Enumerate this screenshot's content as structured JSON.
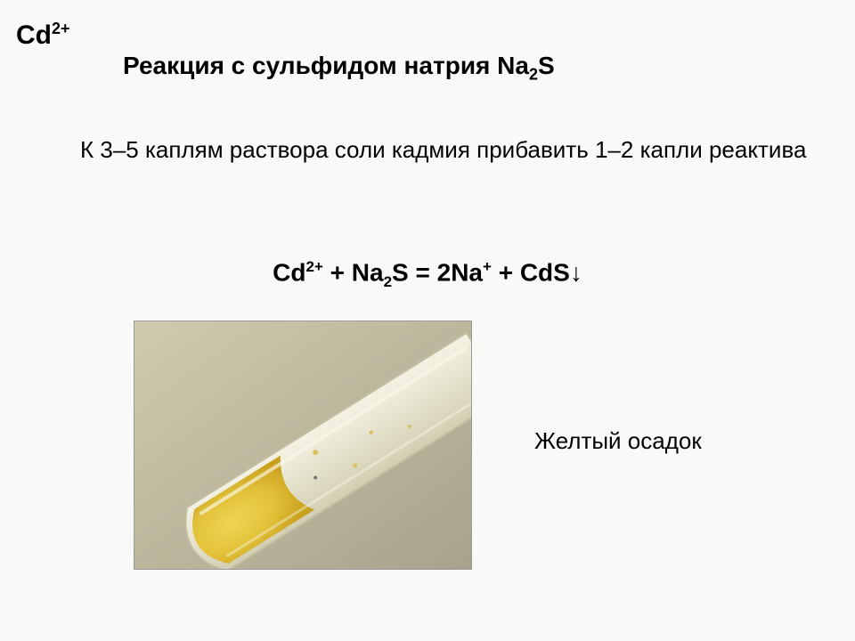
{
  "ion": {
    "base": "Cd",
    "sup": "2+"
  },
  "heading": {
    "prefix": "Реакция с сульфидом натрия Na",
    "sub": "2",
    "suffix": "S"
  },
  "body": {
    "text": "К 3–5 каплям раствора соли кадмия прибавить      1–2 капли реактива"
  },
  "equation": {
    "parts": [
      {
        "t": "Cd"
      },
      {
        "sup": "2+"
      },
      {
        "t": " + Na"
      },
      {
        "sub": "2"
      },
      {
        "t": "S = 2Na"
      },
      {
        "sup": "+"
      },
      {
        "t": " + CdS↓"
      }
    ],
    "plain": "Cd2+ + Na2S = 2Na+ + CdS↓"
  },
  "caption": {
    "text": "Желтый осадок"
  },
  "photo": {
    "description": "cadmium-sulfide-yellow-precipitate-tube",
    "background": "#bfb9a6",
    "tube_glass": "#e9e7d8",
    "tube_glass_edge": "#cfcab0",
    "liquid_yellow": "#e3c23a",
    "liquid_yellow_dark": "#c9a01e",
    "highlight": "#f7f4de",
    "border": "#9b9b9b",
    "rotation_deg": -32
  }
}
